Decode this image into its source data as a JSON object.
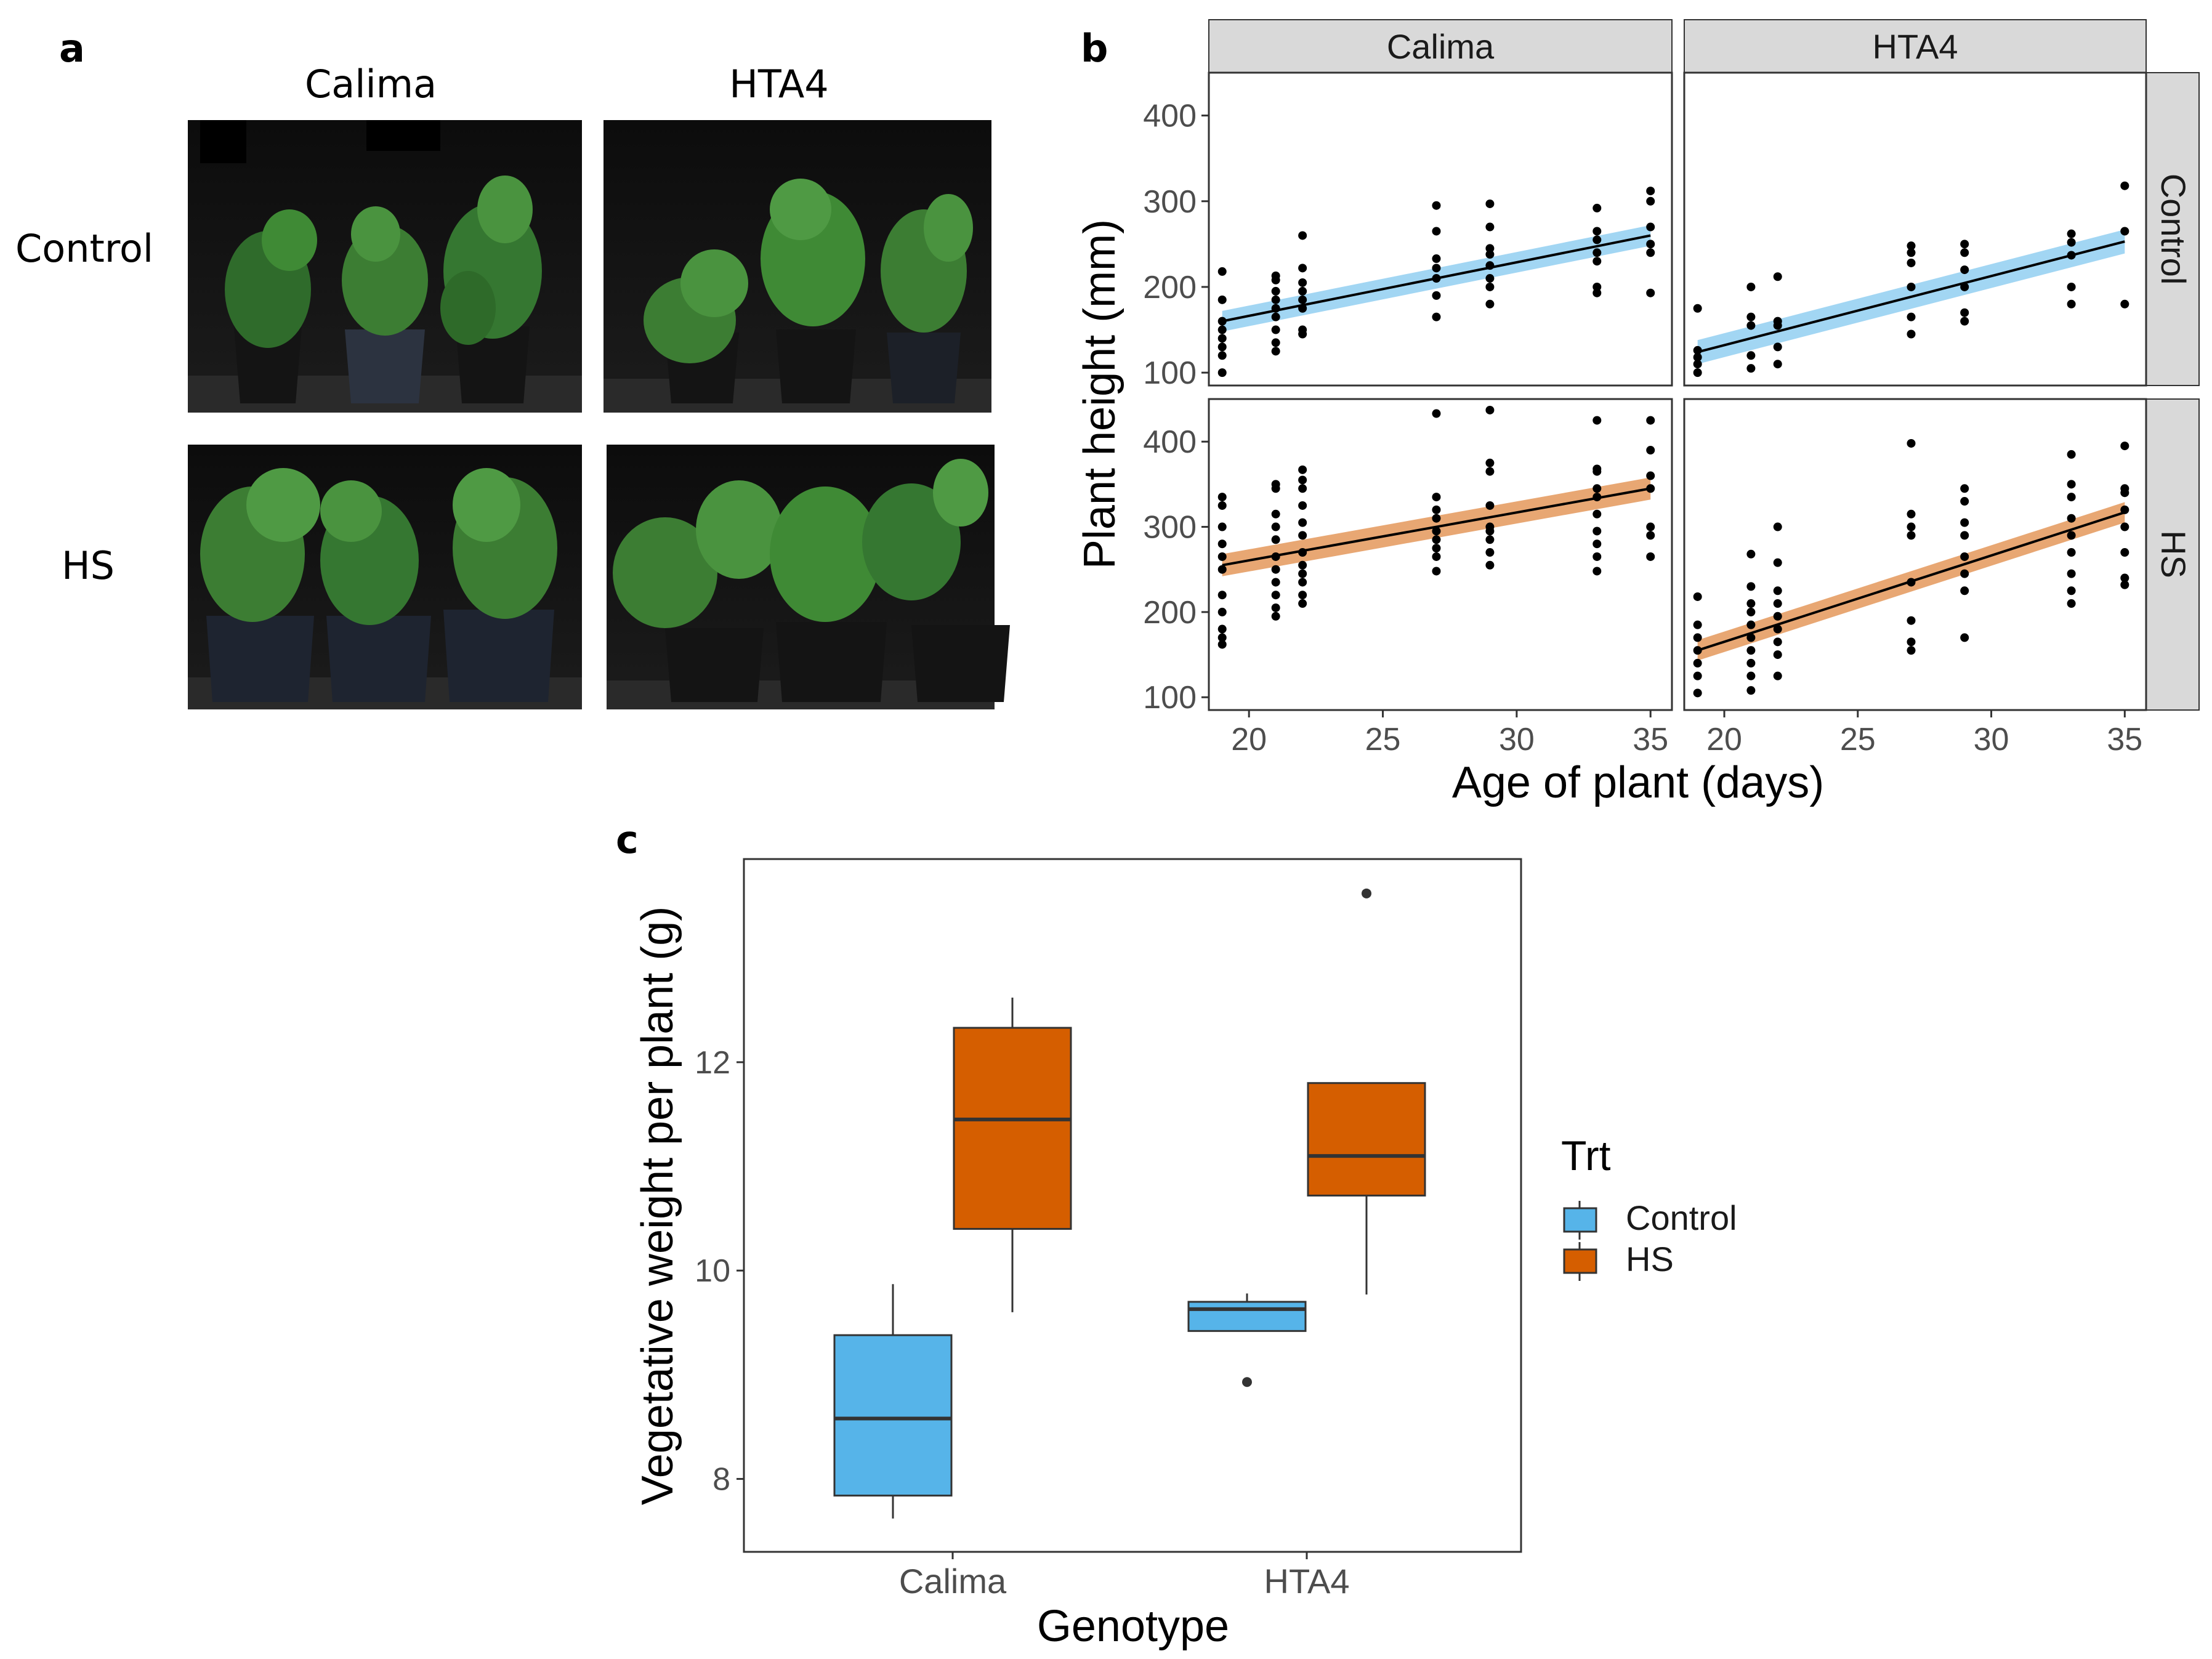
{
  "figure": {
    "panel_a": {
      "letter": "a",
      "col_labels": [
        "Calima",
        "HTA4"
      ],
      "row_labels": [
        "Control",
        "HS"
      ]
    },
    "panel_b": {
      "letter": "b"
    },
    "panel_c": {
      "letter": "c"
    }
  },
  "colors": {
    "control": "#56b4e9",
    "hs": "#d55e00",
    "strip": "#d9d9d9",
    "point": "#000000"
  },
  "chart_data": [
    {
      "id": "b",
      "type": "scatter",
      "xlabel": "Age of plant (days)",
      "ylabel": "Plant height (mm)",
      "xlim": [
        18.5,
        35.8
      ],
      "ylim": [
        85,
        450
      ],
      "xticks": [
        20,
        25,
        30,
        35
      ],
      "yticks": [
        100,
        200,
        300,
        400
      ],
      "facet_cols": [
        "Calima",
        "HTA4"
      ],
      "facet_rows": [
        "Control",
        "HS"
      ],
      "panels": [
        {
          "genotype": "Calima",
          "treatment": "Control",
          "fit": {
            "x": [
              19,
              35
            ],
            "y": [
              160,
              260
            ],
            "ci": 12
          },
          "points": [
            [
              19,
              100
            ],
            [
              19,
              120
            ],
            [
              19,
              130
            ],
            [
              19,
              140
            ],
            [
              19,
              150
            ],
            [
              19,
              160
            ],
            [
              19,
              185
            ],
            [
              19,
              218
            ],
            [
              21,
              125
            ],
            [
              21,
              135
            ],
            [
              21,
              150
            ],
            [
              21,
              165
            ],
            [
              21,
              175
            ],
            [
              21,
              185
            ],
            [
              21,
              195
            ],
            [
              21,
              208
            ],
            [
              21,
              213
            ],
            [
              22,
              145
            ],
            [
              22,
              150
            ],
            [
              22,
              175
            ],
            [
              22,
              185
            ],
            [
              22,
              195
            ],
            [
              22,
              205
            ],
            [
              22,
              222
            ],
            [
              22,
              260
            ],
            [
              27,
              165
            ],
            [
              27,
              190
            ],
            [
              27,
              210
            ],
            [
              27,
              222
            ],
            [
              27,
              233
            ],
            [
              27,
              265
            ],
            [
              27,
              295
            ],
            [
              29,
              180
            ],
            [
              29,
              200
            ],
            [
              29,
              210
            ],
            [
              29,
              225
            ],
            [
              29,
              238
            ],
            [
              29,
              245
            ],
            [
              29,
              270
            ],
            [
              29,
              297
            ],
            [
              33,
              193
            ],
            [
              33,
              200
            ],
            [
              33,
              230
            ],
            [
              33,
              240
            ],
            [
              33,
              255
            ],
            [
              33,
              265
            ],
            [
              33,
              292
            ],
            [
              35,
              193
            ],
            [
              35,
              240
            ],
            [
              35,
              250
            ],
            [
              35,
              270
            ],
            [
              35,
              300
            ],
            [
              35,
              312
            ]
          ]
        },
        {
          "genotype": "HTA4",
          "treatment": "Control",
          "fit": {
            "x": [
              19,
              35
            ],
            "y": [
              124,
              253
            ],
            "ci": 14
          },
          "points": [
            [
              19,
              100
            ],
            [
              19,
              110
            ],
            [
              19,
              118
            ],
            [
              19,
              126
            ],
            [
              19,
              175
            ],
            [
              21,
              105
            ],
            [
              21,
              120
            ],
            [
              21,
              155
            ],
            [
              21,
              165
            ],
            [
              21,
              200
            ],
            [
              22,
              110
            ],
            [
              22,
              130
            ],
            [
              22,
              155
            ],
            [
              22,
              160
            ],
            [
              22,
              212
            ],
            [
              27,
              145
            ],
            [
              27,
              165
            ],
            [
              27,
              200
            ],
            [
              27,
              228
            ],
            [
              27,
              240
            ],
            [
              27,
              248
            ],
            [
              29,
              160
            ],
            [
              29,
              170
            ],
            [
              29,
              200
            ],
            [
              29,
              220
            ],
            [
              29,
              240
            ],
            [
              29,
              250
            ],
            [
              33,
              180
            ],
            [
              33,
              200
            ],
            [
              33,
              237
            ],
            [
              33,
              252
            ],
            [
              33,
              262
            ],
            [
              35,
              180
            ],
            [
              35,
              265
            ],
            [
              35,
              318
            ]
          ]
        },
        {
          "genotype": "Calima",
          "treatment": "HS",
          "fit": {
            "x": [
              19,
              35
            ],
            "y": [
              255,
              345
            ],
            "ci": 13
          },
          "points": [
            [
              19,
              162
            ],
            [
              19,
              170
            ],
            [
              19,
              180
            ],
            [
              19,
              200
            ],
            [
              19,
              220
            ],
            [
              19,
              250
            ],
            [
              19,
              265
            ],
            [
              19,
              280
            ],
            [
              19,
              300
            ],
            [
              19,
              325
            ],
            [
              19,
              335
            ],
            [
              21,
              195
            ],
            [
              21,
              205
            ],
            [
              21,
              220
            ],
            [
              21,
              235
            ],
            [
              21,
              250
            ],
            [
              21,
              265
            ],
            [
              21,
              285
            ],
            [
              21,
              300
            ],
            [
              21,
              315
            ],
            [
              21,
              345
            ],
            [
              21,
              350
            ],
            [
              22,
              210
            ],
            [
              22,
              220
            ],
            [
              22,
              235
            ],
            [
              22,
              245
            ],
            [
              22,
              255
            ],
            [
              22,
              270
            ],
            [
              22,
              290
            ],
            [
              22,
              305
            ],
            [
              22,
              325
            ],
            [
              22,
              345
            ],
            [
              22,
              355
            ],
            [
              22,
              367
            ],
            [
              27,
              248
            ],
            [
              27,
              265
            ],
            [
              27,
              275
            ],
            [
              27,
              285
            ],
            [
              27,
              295
            ],
            [
              27,
              310
            ],
            [
              27,
              320
            ],
            [
              27,
              335
            ],
            [
              27,
              433
            ],
            [
              29,
              255
            ],
            [
              29,
              270
            ],
            [
              29,
              285
            ],
            [
              29,
              295
            ],
            [
              29,
              300
            ],
            [
              29,
              325
            ],
            [
              29,
              365
            ],
            [
              29,
              375
            ],
            [
              29,
              437
            ],
            [
              33,
              248
            ],
            [
              33,
              265
            ],
            [
              33,
              280
            ],
            [
              33,
              295
            ],
            [
              33,
              315
            ],
            [
              33,
              335
            ],
            [
              33,
              345
            ],
            [
              33,
              365
            ],
            [
              33,
              368
            ],
            [
              33,
              425
            ],
            [
              35,
              265
            ],
            [
              35,
              290
            ],
            [
              35,
              300
            ],
            [
              35,
              345
            ],
            [
              35,
              360
            ],
            [
              35,
              390
            ],
            [
              35,
              425
            ]
          ]
        },
        {
          "genotype": "HTA4",
          "treatment": "HS",
          "fit": {
            "x": [
              19,
              35
            ],
            "y": [
              155,
              317
            ],
            "ci": 12
          },
          "points": [
            [
              19,
              105
            ],
            [
              19,
              125
            ],
            [
              19,
              140
            ],
            [
              19,
              155
            ],
            [
              19,
              170
            ],
            [
              19,
              185
            ],
            [
              19,
              218
            ],
            [
              21,
              108
            ],
            [
              21,
              125
            ],
            [
              21,
              140
            ],
            [
              21,
              155
            ],
            [
              21,
              170
            ],
            [
              21,
              185
            ],
            [
              21,
              200
            ],
            [
              21,
              210
            ],
            [
              21,
              230
            ],
            [
              21,
              268
            ],
            [
              22,
              125
            ],
            [
              22,
              150
            ],
            [
              22,
              165
            ],
            [
              22,
              180
            ],
            [
              22,
              195
            ],
            [
              22,
              210
            ],
            [
              22,
              225
            ],
            [
              22,
              258
            ],
            [
              22,
              300
            ],
            [
              27,
              155
            ],
            [
              27,
              165
            ],
            [
              27,
              190
            ],
            [
              27,
              235
            ],
            [
              27,
              290
            ],
            [
              27,
              300
            ],
            [
              27,
              315
            ],
            [
              27,
              398
            ],
            [
              29,
              170
            ],
            [
              29,
              225
            ],
            [
              29,
              245
            ],
            [
              29,
              265
            ],
            [
              29,
              290
            ],
            [
              29,
              305
            ],
            [
              29,
              330
            ],
            [
              29,
              345
            ],
            [
              33,
              210
            ],
            [
              33,
              225
            ],
            [
              33,
              245
            ],
            [
              33,
              270
            ],
            [
              33,
              290
            ],
            [
              33,
              310
            ],
            [
              33,
              335
            ],
            [
              33,
              350
            ],
            [
              33,
              385
            ],
            [
              35,
              232
            ],
            [
              35,
              240
            ],
            [
              35,
              270
            ],
            [
              35,
              300
            ],
            [
              35,
              320
            ],
            [
              35,
              340
            ],
            [
              35,
              345
            ],
            [
              35,
              395
            ]
          ]
        }
      ]
    },
    {
      "id": "c",
      "type": "box",
      "xlabel": "Genotype",
      "ylabel": "Vegetative weight per plant (g)",
      "ylim": [
        7.3,
        13.95
      ],
      "yticks": [
        8,
        10,
        12
      ],
      "categories": [
        "Calima",
        "HTA4"
      ],
      "legend": {
        "title": "Trt",
        "entries": [
          "Control",
          "HS"
        ],
        "position": "right"
      },
      "series": [
        {
          "name": "Control",
          "boxes": [
            {
              "category": "Calima",
              "min": 7.62,
              "q1": 7.84,
              "median": 8.58,
              "q3": 9.38,
              "max": 9.87,
              "outliers": []
            },
            {
              "category": "HTA4",
              "min": 9.42,
              "q1": 9.42,
              "median": 9.63,
              "q3": 9.7,
              "max": 9.78,
              "outliers": [
                8.93
              ]
            }
          ]
        },
        {
          "name": "HS",
          "boxes": [
            {
              "category": "Calima",
              "min": 9.6,
              "q1": 10.4,
              "median": 11.45,
              "q3": 12.33,
              "max": 12.62,
              "outliers": []
            },
            {
              "category": "HTA4",
              "min": 9.77,
              "q1": 10.72,
              "median": 11.1,
              "q3": 11.8,
              "max": 11.8,
              "outliers": [
                13.62
              ]
            }
          ]
        }
      ]
    }
  ]
}
